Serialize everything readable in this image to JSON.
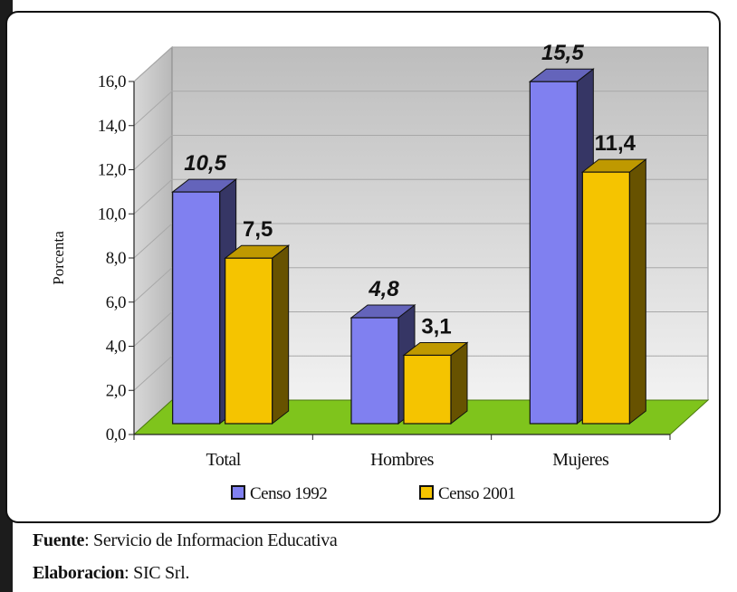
{
  "chart_data": {
    "type": "bar",
    "categories": [
      "Total",
      "Hombres",
      "Mujeres"
    ],
    "series": [
      {
        "name": "Censo 1992",
        "values": [
          10.5,
          4.8,
          15.5
        ],
        "labels": [
          "10,5",
          "4,8",
          "15,5"
        ],
        "color": "#8080f0"
      },
      {
        "name": "Censo 2001",
        "values": [
          7.5,
          3.1,
          11.4
        ],
        "labels": [
          "7,5",
          "3,1",
          "11,4"
        ],
        "color": "#f5c400"
      }
    ],
    "ylabel": "Porcenta",
    "ylim": [
      0,
      16
    ],
    "yticks": [
      "0,0",
      "2,0",
      "4,0",
      "6,0",
      "8,0",
      "10,0",
      "12,0",
      "14,0",
      "16,0"
    ],
    "grid": true,
    "legend": "bottom",
    "floor_color": "#7fc41c"
  },
  "footer": {
    "source_label": "Fuente",
    "source_text": "Servicio de Informacion Educativa",
    "credit_label": "Elaboracion",
    "credit_text": "SIC Srl."
  }
}
